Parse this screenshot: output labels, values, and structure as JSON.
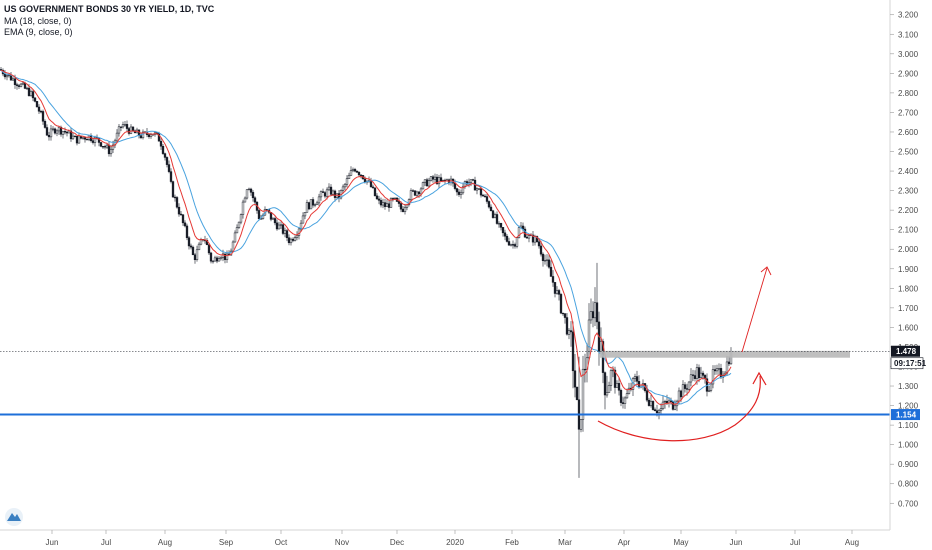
{
  "legend": {
    "title": "US GOVERNMENT BONDS 30 YR YIELD, 1D, TVC",
    "indicator1": "MA (18, close, 0)",
    "indicator2": "EMA (9, close, 0)"
  },
  "colors": {
    "candle": "#131722",
    "ma": "#4aa3df",
    "ema": "#e53935",
    "support": "#1e6fd9",
    "resistance_zone": "#b8b8b8",
    "drawing": "#e02020",
    "price_tag_bg": "#131722",
    "support_tag_bg": "#1e6fd9"
  },
  "logo_icon": "tradingview-cloud-icon",
  "chart_data": {
    "type": "candlestick",
    "title": "US GOVERNMENT BONDS 30 YR YIELD, 1D, TVC",
    "x_ticks": [
      "Jun",
      "Jul",
      "Aug",
      "Sep",
      "Oct",
      "Nov",
      "Dec",
      "2020",
      "Feb",
      "Mar",
      "Apr",
      "May",
      "Jun",
      "Jul",
      "Aug"
    ],
    "y_ticks": [
      "3.200",
      "3.100",
      "3.000",
      "2.900",
      "2.800",
      "2.700",
      "2.600",
      "2.500",
      "2.400",
      "2.300",
      "2.200",
      "2.100",
      "2.000",
      "1.900",
      "1.800",
      "1.700",
      "1.600",
      "1.500",
      "1.400",
      "1.300",
      "1.200",
      "1.100",
      "1.000",
      "0.900",
      "0.800",
      "0.700"
    ],
    "ylim": [
      0.64,
      3.26
    ],
    "grid": false,
    "series": [
      {
        "name": "MA (18, close, 0)"
      },
      {
        "name": "EMA (9, close, 0)"
      }
    ],
    "path": [
      [
        0,
        2.92
      ],
      [
        18,
        2.85
      ],
      [
        30,
        2.8
      ],
      [
        40,
        2.7
      ],
      [
        48,
        2.58
      ],
      [
        56,
        2.62
      ],
      [
        66,
        2.6
      ],
      [
        76,
        2.56
      ],
      [
        88,
        2.58
      ],
      [
        100,
        2.55
      ],
      [
        110,
        2.5
      ],
      [
        122,
        2.64
      ],
      [
        132,
        2.6
      ],
      [
        142,
        2.58
      ],
      [
        152,
        2.6
      ],
      [
        160,
        2.56
      ],
      [
        166,
        2.46
      ],
      [
        172,
        2.3
      ],
      [
        180,
        2.18
      ],
      [
        188,
        2.05
      ],
      [
        194,
        1.95
      ],
      [
        204,
        2.07
      ],
      [
        212,
        1.93
      ],
      [
        220,
        1.98
      ],
      [
        228,
        1.95
      ],
      [
        236,
        2.08
      ],
      [
        242,
        2.22
      ],
      [
        248,
        2.34
      ],
      [
        254,
        2.25
      ],
      [
        260,
        2.15
      ],
      [
        266,
        2.2
      ],
      [
        274,
        2.14
      ],
      [
        282,
        2.1
      ],
      [
        290,
        2.04
      ],
      [
        298,
        2.1
      ],
      [
        306,
        2.22
      ],
      [
        314,
        2.24
      ],
      [
        322,
        2.28
      ],
      [
        330,
        2.3
      ],
      [
        338,
        2.26
      ],
      [
        346,
        2.34
      ],
      [
        354,
        2.42
      ],
      [
        362,
        2.38
      ],
      [
        370,
        2.33
      ],
      [
        378,
        2.24
      ],
      [
        386,
        2.22
      ],
      [
        394,
        2.25
      ],
      [
        402,
        2.2
      ],
      [
        410,
        2.28
      ],
      [
        418,
        2.3
      ],
      [
        426,
        2.34
      ],
      [
        434,
        2.36
      ],
      [
        442,
        2.34
      ],
      [
        450,
        2.36
      ],
      [
        458,
        2.28
      ],
      [
        466,
        2.35
      ],
      [
        474,
        2.33
      ],
      [
        482,
        2.28
      ],
      [
        490,
        2.22
      ],
      [
        498,
        2.12
      ],
      [
        506,
        2.05
      ],
      [
        514,
        2.02
      ],
      [
        520,
        2.12
      ],
      [
        528,
        2.06
      ],
      [
        536,
        2.05
      ],
      [
        542,
        1.99
      ],
      [
        548,
        1.9
      ],
      [
        554,
        1.82
      ],
      [
        560,
        1.72
      ],
      [
        566,
        1.62
      ],
      [
        572,
        1.48
      ],
      [
        576,
        1.25
      ],
      [
        579,
        1.0
      ],
      [
        582,
        1.3
      ],
      [
        586,
        1.45
      ],
      [
        590,
        1.6
      ],
      [
        594,
        1.75
      ],
      [
        598,
        1.62
      ],
      [
        602,
        1.4
      ],
      [
        606,
        1.3
      ],
      [
        612,
        1.38
      ],
      [
        618,
        1.26
      ],
      [
        624,
        1.22
      ],
      [
        630,
        1.28
      ],
      [
        636,
        1.34
      ],
      [
        642,
        1.3
      ],
      [
        648,
        1.24
      ],
      [
        654,
        1.2
      ],
      [
        660,
        1.17
      ],
      [
        666,
        1.22
      ],
      [
        672,
        1.2
      ],
      [
        678,
        1.26
      ],
      [
        684,
        1.28
      ],
      [
        690,
        1.33
      ],
      [
        696,
        1.38
      ],
      [
        702,
        1.34
      ],
      [
        708,
        1.3
      ],
      [
        714,
        1.36
      ],
      [
        720,
        1.36
      ],
      [
        726,
        1.4
      ],
      [
        731,
        1.478
      ]
    ],
    "current_price": "1.478",
    "countdown": "09:17:51",
    "support_level": "1.154",
    "resistance_zone": [
      1.445,
      1.48
    ]
  }
}
